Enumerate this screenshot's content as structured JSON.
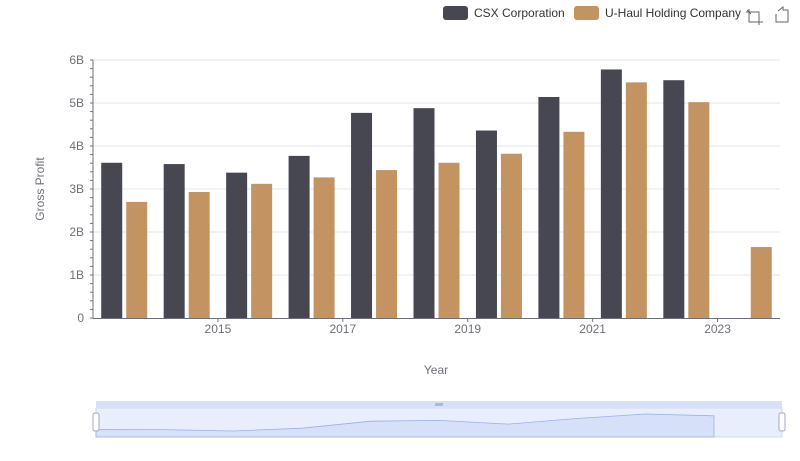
{
  "toolbox": {
    "zoom_icon": "data-zoom-icon",
    "restore_icon": "restore-icon"
  },
  "chart_data": {
    "type": "bar",
    "xlabel": "Year",
    "ylabel": "Gross Profit",
    "ylim": [
      0,
      6000000000
    ],
    "y_ticks": [
      "0",
      "1B",
      "2B",
      "3B",
      "4B",
      "5B",
      "6B"
    ],
    "x_tick_labels": [
      "2015",
      "2017",
      "2019",
      "2021",
      "2023"
    ],
    "categories": [
      2014,
      2015,
      2016,
      2017,
      2018,
      2019,
      2020,
      2021,
      2022,
      2023,
      2024
    ],
    "grid": true,
    "legend_position": "top-right",
    "series": [
      {
        "name": "CSX Corporation",
        "color": "#474752",
        "values": [
          3610000000,
          3580000000,
          3380000000,
          3770000000,
          4770000000,
          4880000000,
          4360000000,
          5140000000,
          5780000000,
          5530000000,
          null
        ]
      },
      {
        "name": "U-Haul Holding Company",
        "color": "#c49362",
        "values": [
          2700000000,
          2930000000,
          3120000000,
          3270000000,
          3440000000,
          3610000000,
          3820000000,
          4330000000,
          5480000000,
          5020000000,
          1650000000
        ]
      }
    ]
  }
}
